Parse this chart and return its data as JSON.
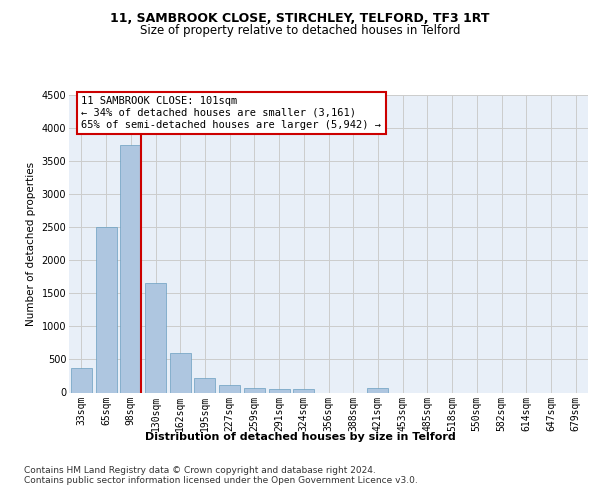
{
  "title1": "11, SAMBROOK CLOSE, STIRCHLEY, TELFORD, TF3 1RT",
  "title2": "Size of property relative to detached houses in Telford",
  "xlabel": "Distribution of detached houses by size in Telford",
  "ylabel": "Number of detached properties",
  "categories": [
    "33sqm",
    "65sqm",
    "98sqm",
    "130sqm",
    "162sqm",
    "195sqm",
    "227sqm",
    "259sqm",
    "291sqm",
    "324sqm",
    "356sqm",
    "388sqm",
    "421sqm",
    "453sqm",
    "485sqm",
    "518sqm",
    "550sqm",
    "582sqm",
    "614sqm",
    "647sqm",
    "679sqm"
  ],
  "values": [
    370,
    2500,
    3750,
    1650,
    590,
    220,
    110,
    65,
    50,
    50,
    0,
    0,
    70,
    0,
    0,
    0,
    0,
    0,
    0,
    0,
    0
  ],
  "bar_color": "#aec6e0",
  "bar_edge_color": "#6a9fc0",
  "annotation_box_text": "11 SAMBROOK CLOSE: 101sqm\n← 34% of detached houses are smaller (3,161)\n65% of semi-detached houses are larger (5,942) →",
  "annotation_box_color": "#ffffff",
  "annotation_box_edge_color": "#cc0000",
  "vline_color": "#cc0000",
  "ylim": [
    0,
    4500
  ],
  "yticks": [
    0,
    500,
    1000,
    1500,
    2000,
    2500,
    3000,
    3500,
    4000,
    4500
  ],
  "grid_color": "#cccccc",
  "bg_color": "#e8eff8",
  "footnote": "Contains HM Land Registry data © Crown copyright and database right 2024.\nContains public sector information licensed under the Open Government Licence v3.0.",
  "title1_fontsize": 9,
  "title2_fontsize": 8.5,
  "xlabel_fontsize": 8,
  "ylabel_fontsize": 7.5,
  "tick_fontsize": 7,
  "annot_fontsize": 7.5,
  "footnote_fontsize": 6.5
}
